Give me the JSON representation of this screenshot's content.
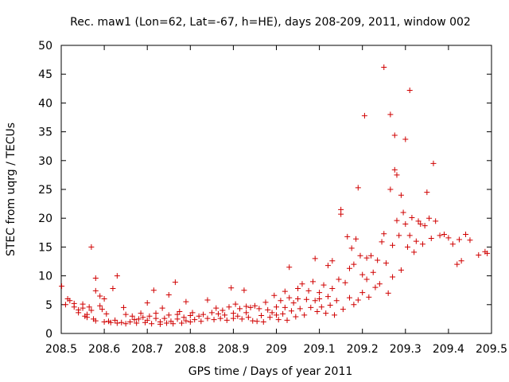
{
  "chart_data": {
    "type": "scatter",
    "title": "Rec. maw1 (Lon=62, Lat=-67, h=HE), days 208-209, 2011, window 002",
    "xlabel": "GPS time / Days of year 2011",
    "ylabel": "STEC from uqrg / TECUs",
    "xlim": [
      208.5,
      209.5
    ],
    "ylim": [
      0,
      50
    ],
    "xticks": [
      "208.5",
      "208.6",
      "208.7",
      "208.8",
      "208.9",
      "209",
      "209.1",
      "209.2",
      "209.3",
      "209.4",
      "209.5"
    ],
    "yticks": [
      "0",
      "5",
      "10",
      "15",
      "20",
      "25",
      "30",
      "35",
      "40",
      "45",
      "50"
    ],
    "grid": false,
    "marker": "+",
    "color": "#d00000",
    "points": [
      [
        208.501,
        8.2
      ],
      [
        208.51,
        5.0
      ],
      [
        208.515,
        6.0
      ],
      [
        208.52,
        5.7
      ],
      [
        208.53,
        5.2
      ],
      [
        208.53,
        4.6
      ],
      [
        208.54,
        4.1
      ],
      [
        208.54,
        3.6
      ],
      [
        208.55,
        5.1
      ],
      [
        208.55,
        4.4
      ],
      [
        208.555,
        3.0
      ],
      [
        208.56,
        3.3
      ],
      [
        208.56,
        2.8
      ],
      [
        208.565,
        4.6
      ],
      [
        208.57,
        15.0
      ],
      [
        208.57,
        4.0
      ],
      [
        208.575,
        2.5
      ],
      [
        208.58,
        9.6
      ],
      [
        208.58,
        7.4
      ],
      [
        208.58,
        2.2
      ],
      [
        208.59,
        4.8
      ],
      [
        208.59,
        6.5
      ],
      [
        208.595,
        4.2
      ],
      [
        208.6,
        6.0
      ],
      [
        208.6,
        2.0
      ],
      [
        208.605,
        3.4
      ],
      [
        208.61,
        2.1
      ],
      [
        208.615,
        1.9
      ],
      [
        208.62,
        7.8
      ],
      [
        208.625,
        2.3
      ],
      [
        208.63,
        10.0
      ],
      [
        208.63,
        1.8
      ],
      [
        208.64,
        1.9
      ],
      [
        208.645,
        4.5
      ],
      [
        208.65,
        3.3
      ],
      [
        208.65,
        1.7
      ],
      [
        208.66,
        2.0
      ],
      [
        208.665,
        3.0
      ],
      [
        208.67,
        2.4
      ],
      [
        208.675,
        1.8
      ],
      [
        208.68,
        2.5
      ],
      [
        208.685,
        3.5
      ],
      [
        208.69,
        2.8
      ],
      [
        208.695,
        1.9
      ],
      [
        208.7,
        2.3
      ],
      [
        208.7,
        5.3
      ],
      [
        208.705,
        3.0
      ],
      [
        208.71,
        1.7
      ],
      [
        208.715,
        7.5
      ],
      [
        208.72,
        2.6
      ],
      [
        208.72,
        3.5
      ],
      [
        208.73,
        2.0
      ],
      [
        208.73,
        1.6
      ],
      [
        208.735,
        4.4
      ],
      [
        208.74,
        2.6
      ],
      [
        208.745,
        1.8
      ],
      [
        208.75,
        6.7
      ],
      [
        208.75,
        3.2
      ],
      [
        208.755,
        2.1
      ],
      [
        208.76,
        1.7
      ],
      [
        208.765,
        8.9
      ],
      [
        208.77,
        3.3
      ],
      [
        208.77,
        2.5
      ],
      [
        208.775,
        3.8
      ],
      [
        208.78,
        1.8
      ],
      [
        208.785,
        2.8
      ],
      [
        208.79,
        5.5
      ],
      [
        208.79,
        2.2
      ],
      [
        208.8,
        3.1
      ],
      [
        208.8,
        2.0
      ],
      [
        208.805,
        3.6
      ],
      [
        208.81,
        2.4
      ],
      [
        208.82,
        3.0
      ],
      [
        208.825,
        2.1
      ],
      [
        208.83,
        3.3
      ],
      [
        208.84,
        5.8
      ],
      [
        208.84,
        2.6
      ],
      [
        208.85,
        3.6
      ],
      [
        208.855,
        2.4
      ],
      [
        208.86,
        4.4
      ],
      [
        208.865,
        3.4
      ],
      [
        208.87,
        2.6
      ],
      [
        208.875,
        4.0
      ],
      [
        208.88,
        3.2
      ],
      [
        208.885,
        2.3
      ],
      [
        208.89,
        4.6
      ],
      [
        208.895,
        7.9
      ],
      [
        208.9,
        3.5
      ],
      [
        208.9,
        2.6
      ],
      [
        208.905,
        5.1
      ],
      [
        208.91,
        3.0
      ],
      [
        208.915,
        4.3
      ],
      [
        208.92,
        2.5
      ],
      [
        208.925,
        7.5
      ],
      [
        208.93,
        3.6
      ],
      [
        208.93,
        4.7
      ],
      [
        208.935,
        2.8
      ],
      [
        208.94,
        4.5
      ],
      [
        208.945,
        2.2
      ],
      [
        208.95,
        4.8
      ],
      [
        208.955,
        2.1
      ],
      [
        208.96,
        4.3
      ],
      [
        208.965,
        3.1
      ],
      [
        208.97,
        2.0
      ],
      [
        208.975,
        5.4
      ],
      [
        208.98,
        4.1
      ],
      [
        208.985,
        2.8
      ],
      [
        208.99,
        3.6
      ],
      [
        208.995,
        6.6
      ],
      [
        209.0,
        3.2
      ],
      [
        209.0,
        4.6
      ],
      [
        209.005,
        2.4
      ],
      [
        209.01,
        5.7
      ],
      [
        209.015,
        3.4
      ],
      [
        209.02,
        7.3
      ],
      [
        209.02,
        4.5
      ],
      [
        209.025,
        2.3
      ],
      [
        209.03,
        6.2
      ],
      [
        209.03,
        11.5
      ],
      [
        209.035,
        3.9
      ],
      [
        209.04,
        5.3
      ],
      [
        209.045,
        2.9
      ],
      [
        209.05,
        7.8
      ],
      [
        209.05,
        6.0
      ],
      [
        209.055,
        4.3
      ],
      [
        209.06,
        8.6
      ],
      [
        209.065,
        3.2
      ],
      [
        209.07,
        5.9
      ],
      [
        209.075,
        7.4
      ],
      [
        209.08,
        4.5
      ],
      [
        209.085,
        9.0
      ],
      [
        209.09,
        13.0
      ],
      [
        209.09,
        5.7
      ],
      [
        209.095,
        3.8
      ],
      [
        209.1,
        7.1
      ],
      [
        209.1,
        6.0
      ],
      [
        209.105,
        4.6
      ],
      [
        209.11,
        8.4
      ],
      [
        209.115,
        3.5
      ],
      [
        209.12,
        11.8
      ],
      [
        209.12,
        6.4
      ],
      [
        209.125,
        4.9
      ],
      [
        209.13,
        12.6
      ],
      [
        209.13,
        7.8
      ],
      [
        209.135,
        3.2
      ],
      [
        209.14,
        5.7
      ],
      [
        209.145,
        9.4
      ],
      [
        209.15,
        21.5
      ],
      [
        209.15,
        20.7
      ],
      [
        209.155,
        4.2
      ],
      [
        209.16,
        8.8
      ],
      [
        209.165,
        16.8
      ],
      [
        209.17,
        11.3
      ],
      [
        209.17,
        6.2
      ],
      [
        209.175,
        14.8
      ],
      [
        209.18,
        12.0
      ],
      [
        209.18,
        5.0
      ],
      [
        209.185,
        16.4
      ],
      [
        209.19,
        25.3
      ],
      [
        209.19,
        5.8
      ],
      [
        209.195,
        13.5
      ],
      [
        209.2,
        10.2
      ],
      [
        209.2,
        7.1
      ],
      [
        209.205,
        37.8
      ],
      [
        209.21,
        13.1
      ],
      [
        209.21,
        9.4
      ],
      [
        209.215,
        6.3
      ],
      [
        209.22,
        13.5
      ],
      [
        209.225,
        10.6
      ],
      [
        209.23,
        8.0
      ],
      [
        209.235,
        12.7
      ],
      [
        209.24,
        8.6
      ],
      [
        209.245,
        15.9
      ],
      [
        209.25,
        46.2
      ],
      [
        209.25,
        17.3
      ],
      [
        209.255,
        12.2
      ],
      [
        209.26,
        7.0
      ],
      [
        209.265,
        38.0
      ],
      [
        209.265,
        25.0
      ],
      [
        209.27,
        15.3
      ],
      [
        209.27,
        9.8
      ],
      [
        209.275,
        34.4
      ],
      [
        209.275,
        28.4
      ],
      [
        209.28,
        27.5
      ],
      [
        209.28,
        19.6
      ],
      [
        209.285,
        17.0
      ],
      [
        209.29,
        24.0
      ],
      [
        209.29,
        11.0
      ],
      [
        209.295,
        21.0
      ],
      [
        209.3,
        33.7
      ],
      [
        209.3,
        19.0
      ],
      [
        209.305,
        15.0
      ],
      [
        209.31,
        42.2
      ],
      [
        209.31,
        17.0
      ],
      [
        209.315,
        20.1
      ],
      [
        209.32,
        14.1
      ],
      [
        209.325,
        16.0
      ],
      [
        209.33,
        19.5
      ],
      [
        209.335,
        19.0
      ],
      [
        209.34,
        15.5
      ],
      [
        209.345,
        18.7
      ],
      [
        209.35,
        24.5
      ],
      [
        209.355,
        20.0
      ],
      [
        209.36,
        16.5
      ],
      [
        209.365,
        29.5
      ],
      [
        209.37,
        19.5
      ],
      [
        209.38,
        17.0
      ],
      [
        209.39,
        17.2
      ],
      [
        209.4,
        16.6
      ],
      [
        209.41,
        15.5
      ],
      [
        209.42,
        12.0
      ],
      [
        209.425,
        16.3
      ],
      [
        209.43,
        12.6
      ],
      [
        209.44,
        17.2
      ],
      [
        209.45,
        16.2
      ],
      [
        209.47,
        13.6
      ],
      [
        209.485,
        14.2
      ],
      [
        209.49,
        13.9
      ]
    ]
  }
}
